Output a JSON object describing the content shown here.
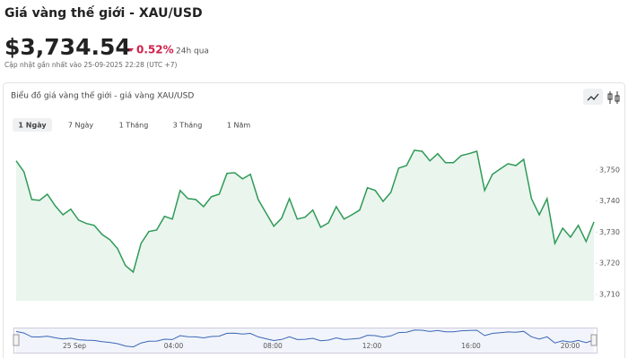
{
  "header": {
    "title": "Giá vàng thế giới - XAU/USD",
    "price": "$3,734.54",
    "change": "0.52%",
    "change_period": "24h qua",
    "updated": "Cập nhật gần nhất vào 25-09-2025 22:28 (UTC +7)"
  },
  "chart_data": {
    "type": "area",
    "title": "Biểu đồ giá vàng thế giới - giá vàng XAU/USD",
    "ranges": [
      "1 Ngày",
      "7 Ngày",
      "1 Tháng",
      "3 Tháng",
      "1 Năm"
    ],
    "values": [
      3752.9,
      3749.4,
      3740.5,
      3740.2,
      3742.2,
      3738.5,
      3735.6,
      3737.4,
      3733.9,
      3732.8,
      3732.2,
      3729.3,
      3727.6,
      3724.7,
      3719.3,
      3717.2,
      3726.4,
      3730.2,
      3730.7,
      3735.1,
      3734.2,
      3743.4,
      3740.8,
      3740.5,
      3738.2,
      3741.4,
      3742.2,
      3748.9,
      3749.1,
      3747.1,
      3748.6,
      3740.5,
      3736.2,
      3731.9,
      3734.5,
      3740.8,
      3734.2,
      3734.8,
      3737.1,
      3731.6,
      3733.0,
      3738.2,
      3734.2,
      3735.6,
      3737.1,
      3744.3,
      3743.4,
      3739.9,
      3742.8,
      3750.6,
      3751.4,
      3756.3,
      3756.0,
      3752.9,
      3755.2,
      3752.3,
      3752.3,
      3754.6,
      3755.2,
      3756.0,
      3743.4,
      3748.6,
      3750.3,
      3752.0,
      3751.4,
      3753.4,
      3740.8,
      3735.6,
      3740.8,
      3726.4,
      3731.3,
      3728.4,
      3732.2,
      3727.0,
      3733.3
    ],
    "color": "#2f9a57",
    "ylim": [
      3708,
      3758
    ],
    "yticks": [
      {
        "value": 3710,
        "label": "3,710"
      },
      {
        "value": 3720,
        "label": "3,720"
      },
      {
        "value": 3730,
        "label": "3,730"
      },
      {
        "value": 3740,
        "label": "3,740"
      },
      {
        "value": 3750,
        "label": "3,750"
      }
    ],
    "navigator_labels": [
      "25 Sep",
      "04:00",
      "08:00",
      "12:00",
      "16:00",
      "20:00"
    ]
  }
}
